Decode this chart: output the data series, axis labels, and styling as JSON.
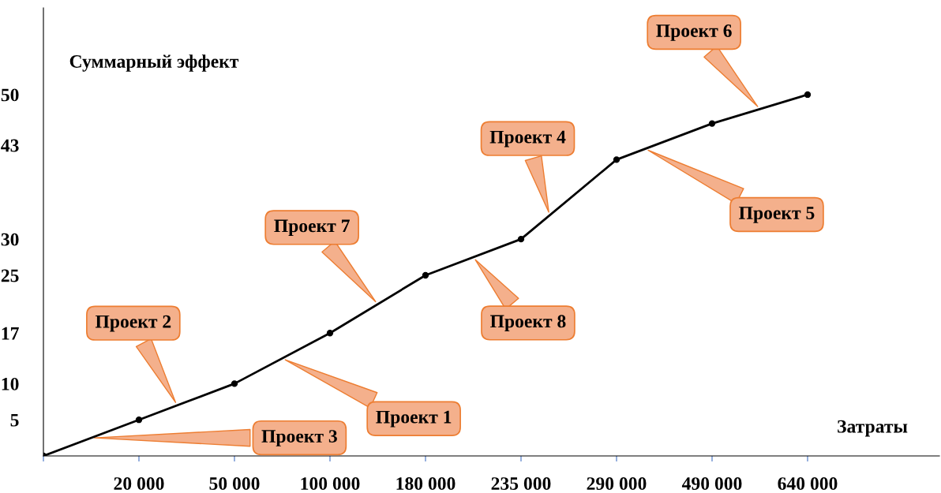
{
  "chart_data": {
    "type": "line",
    "xlabel": "Затраты",
    "ylabel": "Суммарный эффект",
    "categories": [
      null,
      "20 000",
      "50 000",
      "100 000",
      "180 000",
      "235 000",
      "290 000",
      "490 000",
      "640 000"
    ],
    "series": [
      {
        "color": "#000000",
        "values": [
          0,
          5,
          10,
          17,
          25,
          30,
          41,
          46,
          50
        ]
      }
    ],
    "ylim": [
      0,
      62
    ],
    "yticks": [
      5,
      10,
      17,
      25,
      30,
      43,
      50
    ],
    "marker": "circle",
    "line_style": "solid",
    "grid": false,
    "legend": false,
    "annotations": [
      "Проект 1",
      "Проект 2",
      "Проект 3",
      "Проект 4",
      "Проект 5",
      "Проект 6",
      "Проект 7",
      "Проект 8"
    ]
  }
}
